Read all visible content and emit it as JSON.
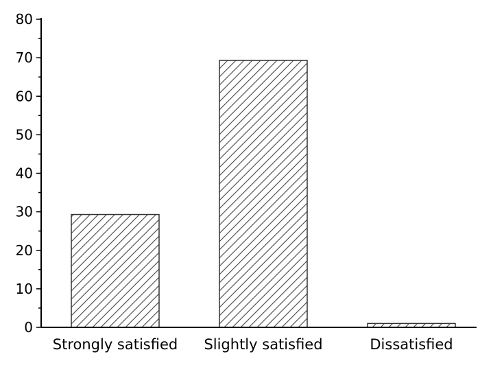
{
  "chart_data": {
    "type": "bar",
    "categories": [
      "Strongly satisfied",
      "Slightly satisfied",
      "Dissatisfied"
    ],
    "values": [
      29.3,
      69.3,
      1.0
    ],
    "ylim": [
      0,
      80
    ],
    "yticks": [
      0,
      10,
      20,
      30,
      40,
      50,
      60,
      70,
      80
    ],
    "grid": false,
    "bar_pattern": "diagonal-hatch",
    "colors": {
      "bar_fill": "#ffffff",
      "bar_stroke": "#333333",
      "hatch": "#555555",
      "axis": "#000000"
    }
  }
}
